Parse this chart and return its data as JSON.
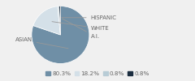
{
  "labels": [
    "ASIAN",
    "WHITE",
    "HISPANIC",
    "A.I."
  ],
  "values": [
    80.3,
    18.2,
    0.8,
    0.8
  ],
  "colors": [
    "#6f8fa6",
    "#d4e0e8",
    "#b8ccd6",
    "#1c2e40"
  ],
  "legend_labels": [
    "80.3%",
    "18.2%",
    "0.8%",
    "0.8%"
  ],
  "startangle": 90,
  "label_fontsize": 5.0,
  "legend_fontsize": 5.2,
  "bg_color": "#f0f0f0"
}
